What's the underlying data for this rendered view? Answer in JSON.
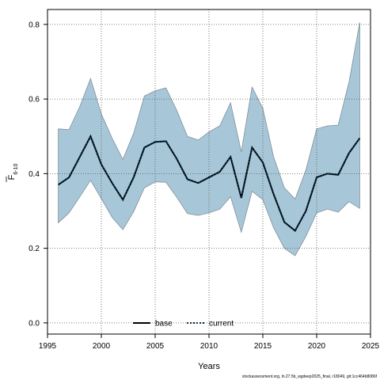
{
  "chart_data": {
    "type": "line",
    "xlabel": "Years",
    "ylabel_main": "F",
    "ylabel_sub": "6-10",
    "xlim": [
      1995,
      2025
    ],
    "ylim": [
      -0.03,
      0.84
    ],
    "x_ticks": [
      1995,
      2000,
      2005,
      2010,
      2015,
      2020,
      2025
    ],
    "y_ticks": [
      0.0,
      0.2,
      0.4,
      0.6,
      0.8
    ],
    "y_tick_labels": [
      "0.0",
      "0.2",
      "0.4",
      "0.6",
      "0.8"
    ],
    "grid": true,
    "legend_placement": "bottom-center",
    "colors": {
      "band_fill": "#a7c7d8",
      "band_stroke": "#7f8f98",
      "current_line": "#0b2f4a",
      "base_line": "#000000",
      "grid": "#555555"
    },
    "x": [
      1996,
      1997,
      1998,
      1999,
      2000,
      2001,
      2002,
      2003,
      2004,
      2005,
      2006,
      2007,
      2008,
      2009,
      2010,
      2011,
      2012,
      2013,
      2014,
      2015,
      2016,
      2017,
      2018,
      2019,
      2020,
      2021,
      2022,
      2023,
      2024
    ],
    "series": [
      {
        "name": "base",
        "style": "solid",
        "values": [
          0.37,
          0.39,
          0.445,
          0.5,
          0.425,
          0.375,
          0.33,
          0.39,
          0.47,
          0.485,
          0.487,
          0.44,
          0.385,
          0.375,
          0.39,
          0.405,
          0.445,
          0.335,
          0.47,
          0.43,
          0.345,
          0.27,
          0.247,
          0.3,
          0.39,
          0.4,
          0.397,
          0.455,
          0.495
        ]
      },
      {
        "name": "current",
        "style": "dotted",
        "values": [
          0.37,
          0.39,
          0.445,
          0.5,
          0.425,
          0.375,
          0.33,
          0.39,
          0.47,
          0.485,
          0.487,
          0.44,
          0.385,
          0.375,
          0.39,
          0.405,
          0.445,
          0.335,
          0.47,
          0.43,
          0.345,
          0.27,
          0.247,
          0.3,
          0.39,
          0.4,
          0.397,
          0.455,
          0.495
        ]
      }
    ],
    "band": {
      "upper": [
        0.52,
        0.518,
        0.58,
        0.655,
        0.56,
        0.495,
        0.438,
        0.508,
        0.608,
        0.622,
        0.63,
        0.57,
        0.5,
        0.49,
        0.512,
        0.528,
        0.59,
        0.458,
        0.632,
        0.575,
        0.445,
        0.362,
        0.332,
        0.41,
        0.52,
        0.528,
        0.53,
        0.645,
        0.805
      ],
      "lower": [
        0.268,
        0.295,
        0.338,
        0.382,
        0.333,
        0.283,
        0.25,
        0.298,
        0.362,
        0.378,
        0.377,
        0.337,
        0.293,
        0.288,
        0.295,
        0.305,
        0.338,
        0.243,
        0.353,
        0.33,
        0.255,
        0.2,
        0.18,
        0.232,
        0.295,
        0.305,
        0.297,
        0.325,
        0.307
      ]
    },
    "footnote": "stockassessment.org, ln.27.5b_wgdeep2025_final, r18049, git:1cc464b8086f"
  }
}
